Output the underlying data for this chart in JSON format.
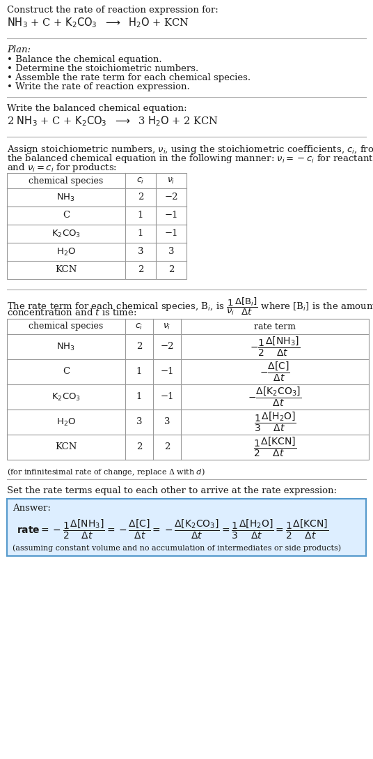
{
  "bg_color": "#ffffff",
  "text_color": "#1a1a1a",
  "font_family": "DejaVu Serif",
  "title_line1": "Construct the rate of reaction expression for:",
  "section_plan_title": "Plan:",
  "plan_items": [
    "• Balance the chemical equation.",
    "• Determine the stoichiometric numbers.",
    "• Assemble the rate term for each chemical species.",
    "• Write the rate of reaction expression."
  ],
  "balanced_label": "Write the balanced chemical equation:",
  "stoich_intro_line1": "Assign stoichiometric numbers, $\\nu_i$, using the stoichiometric coefficients, $c_i$, from",
  "stoich_intro_line2": "the balanced chemical equation in the following manner: $\\nu_i = -c_i$ for reactants",
  "stoich_intro_line3": "and $\\nu_i = c_i$ for products:",
  "table1_headers": [
    "chemical species",
    "$c_i$",
    "$\\nu_i$"
  ],
  "table1_rows": [
    [
      "$\\mathrm{NH_3}$",
      "2",
      "−2"
    ],
    [
      "C",
      "1",
      "−1"
    ],
    [
      "$\\mathrm{K_2CO_3}$",
      "1",
      "−1"
    ],
    [
      "$\\mathrm{H_2O}$",
      "3",
      "3"
    ],
    [
      "KCN",
      "2",
      "2"
    ]
  ],
  "rate_intro_line1": "The rate term for each chemical species, B$_i$, is $\\dfrac{1}{\\nu_i}\\dfrac{\\Delta[\\mathrm{B}_i]}{\\Delta t}$ where [B$_i$] is the amount",
  "rate_intro_line2": "concentration and $t$ is time:",
  "table2_headers": [
    "chemical species",
    "$c_i$",
    "$\\nu_i$",
    "rate term"
  ],
  "table2_rows": [
    [
      "$\\mathrm{NH_3}$",
      "2",
      "−2",
      "$-\\dfrac{1}{2}\\dfrac{\\Delta[\\mathrm{NH_3}]}{\\Delta t}$"
    ],
    [
      "C",
      "1",
      "−1",
      "$-\\dfrac{\\Delta[\\mathrm{C}]}{\\Delta t}$"
    ],
    [
      "$\\mathrm{K_2CO_3}$",
      "1",
      "−1",
      "$-\\dfrac{\\Delta[\\mathrm{K_2CO_3}]}{\\Delta t}$"
    ],
    [
      "$\\mathrm{H_2O}$",
      "3",
      "3",
      "$\\dfrac{1}{3}\\dfrac{\\Delta[\\mathrm{H_2O}]}{\\Delta t}$"
    ],
    [
      "KCN",
      "2",
      "2",
      "$\\dfrac{1}{2}\\dfrac{\\Delta[\\mathrm{KCN}]}{\\Delta t}$"
    ]
  ],
  "infinitesimal_note": "(for infinitesimal rate of change, replace Δ with $d$)",
  "set_rate_text": "Set the rate terms equal to each other to arrive at the rate expression:",
  "answer_box_color": "#ddeeff",
  "answer_border_color": "#5599cc",
  "answer_label": "Answer:",
  "answer_note": "(assuming constant volume and no accumulation of intermediates or side products)"
}
